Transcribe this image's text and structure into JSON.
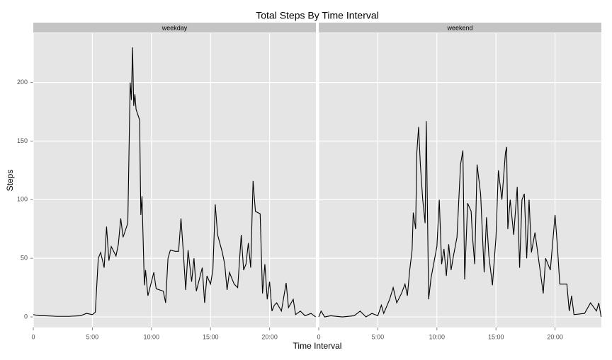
{
  "chart_data": {
    "type": "line",
    "title": "Total Steps By Time Interval",
    "xlabel": "Time Interval",
    "ylabel": "Steps",
    "xlim": [
      0,
      23.92
    ],
    "ylim": [
      -9,
      242
    ],
    "xticks": [
      0,
      {
        "value": 5,
        "label": "5:00"
      },
      {
        "value": 10,
        "label": "10:00"
      },
      {
        "value": 15,
        "label": "15:00"
      },
      {
        "value": 20,
        "label": "20:00"
      }
    ],
    "yticks": [
      0,
      50,
      100,
      150,
      200
    ],
    "grid": true,
    "color": "#000000",
    "series": [
      {
        "name": "weekday",
        "x": [
          0,
          0.5,
          1,
          2,
          3,
          4,
          4.5,
          5,
          5.25,
          5.5,
          5.7,
          6,
          6.2,
          6.4,
          6.6,
          7,
          7.2,
          7.4,
          7.6,
          8,
          8.2,
          8.3,
          8.4,
          8.5,
          8.6,
          8.7,
          9,
          9.1,
          9.2,
          9.4,
          9.5,
          9.7,
          10,
          10.2,
          10.4,
          11,
          11.2,
          11.4,
          11.6,
          12,
          12.3,
          12.5,
          12.7,
          12.9,
          13.1,
          13.4,
          13.6,
          13.8,
          14,
          14.3,
          14.5,
          14.7,
          15,
          15.2,
          15.4,
          15.6,
          16,
          16.2,
          16.4,
          16.6,
          17,
          17.3,
          17.6,
          17.8,
          18,
          18.2,
          18.4,
          18.6,
          18.8,
          19.2,
          19.4,
          19.6,
          19.8,
          20,
          20.2,
          20.4,
          20.6,
          21,
          21.4,
          21.6,
          22,
          22.2,
          22.6,
          23,
          23.5,
          23.9
        ],
        "values": [
          2,
          1,
          1,
          0.5,
          0.5,
          1,
          3,
          2,
          4,
          50,
          55,
          42,
          77,
          48,
          60,
          52,
          62,
          84,
          68,
          80,
          200,
          185,
          230,
          180,
          190,
          177,
          168,
          87,
          103,
          27,
          40,
          18,
          30,
          38,
          24,
          22,
          12,
          50,
          57,
          56,
          56,
          84,
          55,
          23,
          57,
          30,
          50,
          22,
          30,
          42,
          12,
          35,
          28,
          40,
          96,
          70,
          55,
          45,
          23,
          38,
          28,
          25,
          70,
          40,
          45,
          63,
          42,
          116,
          90,
          88,
          20,
          45,
          15,
          30,
          5,
          10,
          12,
          5,
          29,
          8,
          15,
          2,
          5,
          1,
          3,
          0
        ]
      },
      {
        "name": "weekend",
        "x": [
          0,
          0.2,
          0.5,
          1,
          2,
          3,
          3.5,
          4,
          4.5,
          5,
          5.3,
          5.5,
          6,
          6.3,
          6.6,
          7,
          7.3,
          7.5,
          7.7,
          7.9,
          8,
          8.2,
          8.3,
          8.45,
          8.6,
          8.8,
          9,
          9.1,
          9.3,
          9.5,
          10,
          10.2,
          10.4,
          10.6,
          10.8,
          11,
          11.2,
          11.4,
          11.7,
          12,
          12.2,
          12.35,
          12.6,
          12.9,
          13,
          13.2,
          13.4,
          13.7,
          14,
          14.2,
          14.4,
          14.7,
          15,
          15.2,
          15.5,
          15.8,
          15.9,
          16,
          16.2,
          16.5,
          16.8,
          17,
          17.2,
          17.4,
          17.6,
          17.8,
          18,
          18.3,
          19,
          19.2,
          19.6,
          20,
          20.2,
          20.4,
          21,
          21.2,
          21.4,
          21.6,
          22.5,
          23,
          23.5,
          23.7,
          23.9
        ],
        "values": [
          0,
          5,
          0,
          1,
          0,
          1,
          5,
          0,
          3,
          1,
          10,
          3,
          15,
          25,
          12,
          20,
          28,
          18,
          40,
          57,
          89,
          75,
          140,
          162,
          130,
          100,
          80,
          167,
          15,
          33,
          60,
          100,
          45,
          58,
          35,
          62,
          40,
          52,
          68,
          130,
          142,
          32,
          97,
          90,
          70,
          45,
          130,
          105,
          38,
          85,
          52,
          27,
          68,
          125,
          100,
          140,
          145,
          75,
          100,
          70,
          111,
          42,
          100,
          105,
          50,
          100,
          55,
          72,
          20,
          50,
          40,
          87,
          60,
          28,
          28,
          5,
          18,
          2,
          3,
          12,
          5,
          12,
          0
        ]
      }
    ]
  }
}
